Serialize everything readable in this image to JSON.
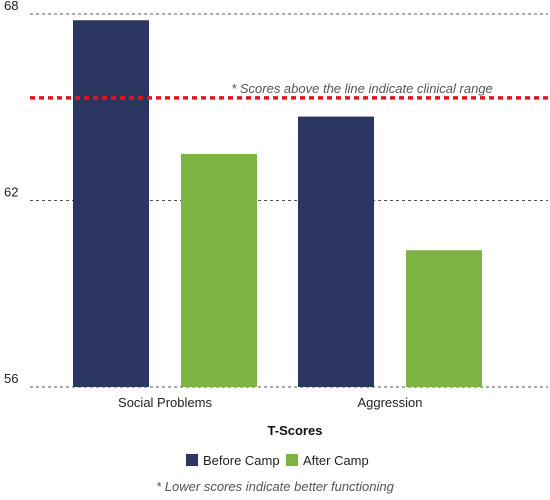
{
  "chart_data": {
    "type": "bar",
    "categories": [
      "Social Problems",
      "Aggression"
    ],
    "series": [
      {
        "name": "Before Camp",
        "color": "#2b3660",
        "values": [
          67.8,
          64.7
        ]
      },
      {
        "name": "After Camp",
        "color": "#7cb342",
        "values": [
          63.5,
          60.4
        ]
      }
    ],
    "xlabel": "T-Scores",
    "ylabel": "",
    "ylim": [
      56,
      68
    ],
    "yticks": [
      56,
      62,
      68
    ],
    "grid": true,
    "legend_position": "bottom",
    "threshold": {
      "value": 65.3,
      "color": "#e8141c",
      "label": "* Scores above the line indicate clinical range"
    },
    "footnote": "* Lower scores indicate better functioning"
  }
}
